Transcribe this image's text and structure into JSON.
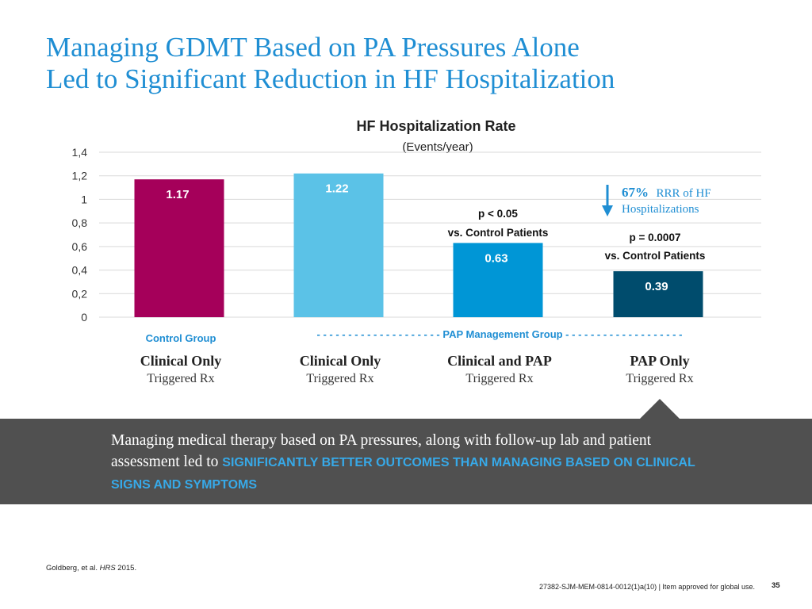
{
  "slide": {
    "title_line1": "Managing GDMT Based on PA Pressures Alone",
    "title_line2": "Led to Significant Reduction in HF Hospitalization"
  },
  "chart_data": {
    "type": "bar",
    "title": "HF Hospitalization Rate",
    "subtitle": "(Events/year)",
    "categories": [
      "Clinical Only",
      "Clinical Only",
      "Clinical and PAP",
      "PAP Only"
    ],
    "category_sublabels": [
      "Triggered Rx",
      "Triggered Rx",
      "Triggered Rx",
      "Triggered Rx"
    ],
    "values": [
      1.17,
      1.22,
      0.63,
      0.39
    ],
    "value_labels": [
      "1.17",
      "1.22",
      "0.63",
      "0.39"
    ],
    "colors": [
      "#a5005a",
      "#5bc2e7",
      "#0096d6",
      "#004c6d"
    ],
    "ylim": [
      0,
      1.4
    ],
    "yticks": [
      0,
      0.2,
      0.4,
      0.6,
      0.8,
      1.0,
      1.2,
      1.4
    ],
    "ytick_labels": [
      "0",
      "0,2",
      "0,4",
      "0,6",
      "0,8",
      "1",
      "1,2",
      "1,4"
    ],
    "grid": true,
    "annotations": {
      "stat_bar3_line1": "p < 0.05",
      "stat_bar3_line2": "vs. Control Patients",
      "stat_bar4_line1": "p = 0.0007",
      "stat_bar4_line2": "vs. Control Patients",
      "rrr_value": "67%",
      "rrr_line1": "RRR of HF",
      "rrr_line2": "Hospitalizations"
    },
    "group_labels": {
      "control": "Control Group",
      "pap": "- - - - - - - - - - - - - - - - - - - - PAP Management Group - - - - - - - - - - - - - - - - - - -"
    }
  },
  "banner": {
    "text": "Managing medical therapy based on PA pressures, along with follow-up lab and patient assessment led to ",
    "highlight": "SIGNIFICANTLY BETTER OUTCOMES THAN MANAGING BASED ON CLINICAL SIGNS AND SYMPTOMS"
  },
  "footer": {
    "reference_prefix": "Goldberg, et al. ",
    "reference_journal": "HRS",
    "reference_suffix": " 2015.",
    "code": "27382-SJM-MEM-0814-0012(1)a(10) | Item approved for global use.",
    "page": "35"
  },
  "theme": {
    "accent": "#1f8ed3",
    "banner_bg": "#505050"
  }
}
